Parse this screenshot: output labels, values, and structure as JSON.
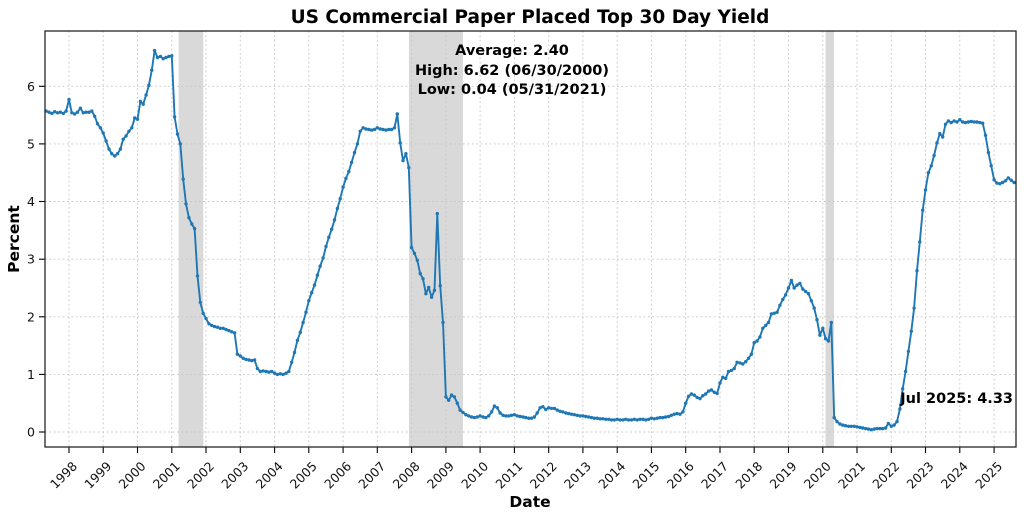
{
  "title": "US Commercial Paper Placed Top 30 Day Yield",
  "annotations": {
    "average": "Average: 2.40",
    "high": "High: 6.62 (06/30/2000)",
    "low": "Low: 0.04 (05/31/2021)",
    "latest": "Jul 2025: 4.33"
  },
  "chart_data": {
    "type": "line",
    "title": "US Commercial Paper Placed Top 30 Day Yield",
    "xlabel": "Date",
    "ylabel": "Percent",
    "x_ticks": [
      1998,
      1999,
      2000,
      2001,
      2002,
      2003,
      2004,
      2005,
      2006,
      2007,
      2008,
      2009,
      2010,
      2011,
      2012,
      2013,
      2014,
      2015,
      2016,
      2017,
      2018,
      2019,
      2020,
      2021,
      2022,
      2023,
      2024,
      2025
    ],
    "y_ticks": [
      0,
      1,
      2,
      3,
      4,
      5,
      6
    ],
    "xlim": [
      1997.3,
      2025.64
    ],
    "ylim": [
      -0.26,
      6.96
    ],
    "grid": true,
    "legend": "none",
    "line_color": "#1f77b4",
    "marker": "dot",
    "band_color": "#d9d9d9",
    "recession_bands": [
      [
        2001.2,
        2001.92
      ],
      [
        2007.92,
        2009.5
      ],
      [
        2020.08,
        2020.33
      ]
    ],
    "stats": {
      "average": 2.4,
      "high": 6.62,
      "high_date": "06/30/2000",
      "low": 0.04,
      "low_date": "05/31/2021",
      "latest": 4.33,
      "latest_period": "Jul 2025"
    },
    "series": [
      {
        "name": "US Commercial Paper Placed Top 30 Day Yield",
        "frequency": "monthly",
        "start_year": 1997,
        "start_month": 4,
        "end_label": "Jul 2025",
        "values": [
          5.57,
          5.55,
          5.53,
          5.56,
          5.54,
          5.55,
          5.53,
          5.57,
          5.77,
          5.54,
          5.52,
          5.55,
          5.62,
          5.54,
          5.55,
          5.55,
          5.57,
          5.48,
          5.35,
          5.28,
          5.19,
          5.05,
          4.91,
          4.83,
          4.79,
          4.83,
          4.91,
          5.08,
          5.14,
          5.22,
          5.28,
          5.45,
          5.43,
          5.74,
          5.69,
          5.85,
          6.02,
          6.28,
          6.62,
          6.5,
          6.52,
          6.48,
          6.5,
          6.52,
          6.53,
          5.47,
          5.17,
          5.0,
          4.39,
          3.96,
          3.72,
          3.61,
          3.53,
          2.71,
          2.25,
          2.06,
          1.97,
          1.88,
          1.85,
          1.83,
          1.82,
          1.8,
          1.8,
          1.78,
          1.76,
          1.74,
          1.72,
          1.35,
          1.32,
          1.28,
          1.26,
          1.25,
          1.24,
          1.25,
          1.1,
          1.05,
          1.06,
          1.05,
          1.04,
          1.05,
          1.02,
          1.0,
          1.01,
          1.0,
          1.02,
          1.05,
          1.21,
          1.38,
          1.59,
          1.73,
          1.9,
          2.08,
          2.28,
          2.42,
          2.55,
          2.72,
          2.88,
          3.02,
          3.22,
          3.38,
          3.52,
          3.68,
          3.88,
          4.05,
          4.25,
          4.4,
          4.52,
          4.68,
          4.85,
          5.0,
          5.22,
          5.28,
          5.26,
          5.25,
          5.24,
          5.25,
          5.28,
          5.26,
          5.25,
          5.24,
          5.25,
          5.25,
          5.28,
          5.52,
          5.02,
          4.71,
          4.83,
          4.59,
          3.2,
          3.1,
          2.98,
          2.75,
          2.66,
          2.4,
          2.51,
          2.34,
          2.46,
          3.79,
          2.54,
          1.9,
          0.61,
          0.55,
          0.64,
          0.61,
          0.5,
          0.38,
          0.34,
          0.3,
          0.28,
          0.26,
          0.25,
          0.26,
          0.28,
          0.26,
          0.25,
          0.28,
          0.35,
          0.45,
          0.42,
          0.33,
          0.29,
          0.28,
          0.28,
          0.29,
          0.3,
          0.28,
          0.27,
          0.26,
          0.25,
          0.24,
          0.24,
          0.26,
          0.33,
          0.42,
          0.44,
          0.39,
          0.42,
          0.41,
          0.41,
          0.38,
          0.36,
          0.35,
          0.33,
          0.32,
          0.31,
          0.3,
          0.29,
          0.28,
          0.28,
          0.27,
          0.26,
          0.25,
          0.24,
          0.24,
          0.23,
          0.23,
          0.22,
          0.22,
          0.21,
          0.21,
          0.22,
          0.21,
          0.21,
          0.22,
          0.21,
          0.21,
          0.22,
          0.21,
          0.22,
          0.22,
          0.21,
          0.22,
          0.24,
          0.23,
          0.24,
          0.25,
          0.25,
          0.26,
          0.27,
          0.29,
          0.31,
          0.32,
          0.31,
          0.35,
          0.5,
          0.62,
          0.66,
          0.64,
          0.6,
          0.58,
          0.63,
          0.66,
          0.71,
          0.73,
          0.69,
          0.67,
          0.85,
          0.95,
          0.93,
          1.05,
          1.07,
          1.1,
          1.21,
          1.2,
          1.18,
          1.22,
          1.28,
          1.35,
          1.55,
          1.58,
          1.65,
          1.8,
          1.85,
          1.9,
          2.05,
          2.06,
          2.08,
          2.2,
          2.3,
          2.38,
          2.5,
          2.63,
          2.5,
          2.55,
          2.58,
          2.48,
          2.44,
          2.4,
          2.28,
          2.15,
          1.95,
          1.68,
          1.8,
          1.62,
          1.58,
          1.9,
          0.25,
          0.18,
          0.14,
          0.12,
          0.11,
          0.1,
          0.1,
          0.1,
          0.09,
          0.08,
          0.07,
          0.06,
          0.05,
          0.04,
          0.05,
          0.06,
          0.06,
          0.06,
          0.07,
          0.15,
          0.1,
          0.12,
          0.18,
          0.4,
          0.75,
          1.05,
          1.4,
          1.75,
          2.15,
          2.8,
          3.3,
          3.85,
          4.2,
          4.5,
          4.62,
          4.8,
          5.02,
          5.18,
          5.12,
          5.34,
          5.4,
          5.37,
          5.4,
          5.38,
          5.42,
          5.38,
          5.37,
          5.38,
          5.39,
          5.38,
          5.38,
          5.37,
          5.36,
          5.15,
          4.85,
          4.62,
          4.38,
          4.32,
          4.31,
          4.33,
          4.36,
          4.41,
          4.37,
          4.33
        ]
      }
    ]
  }
}
